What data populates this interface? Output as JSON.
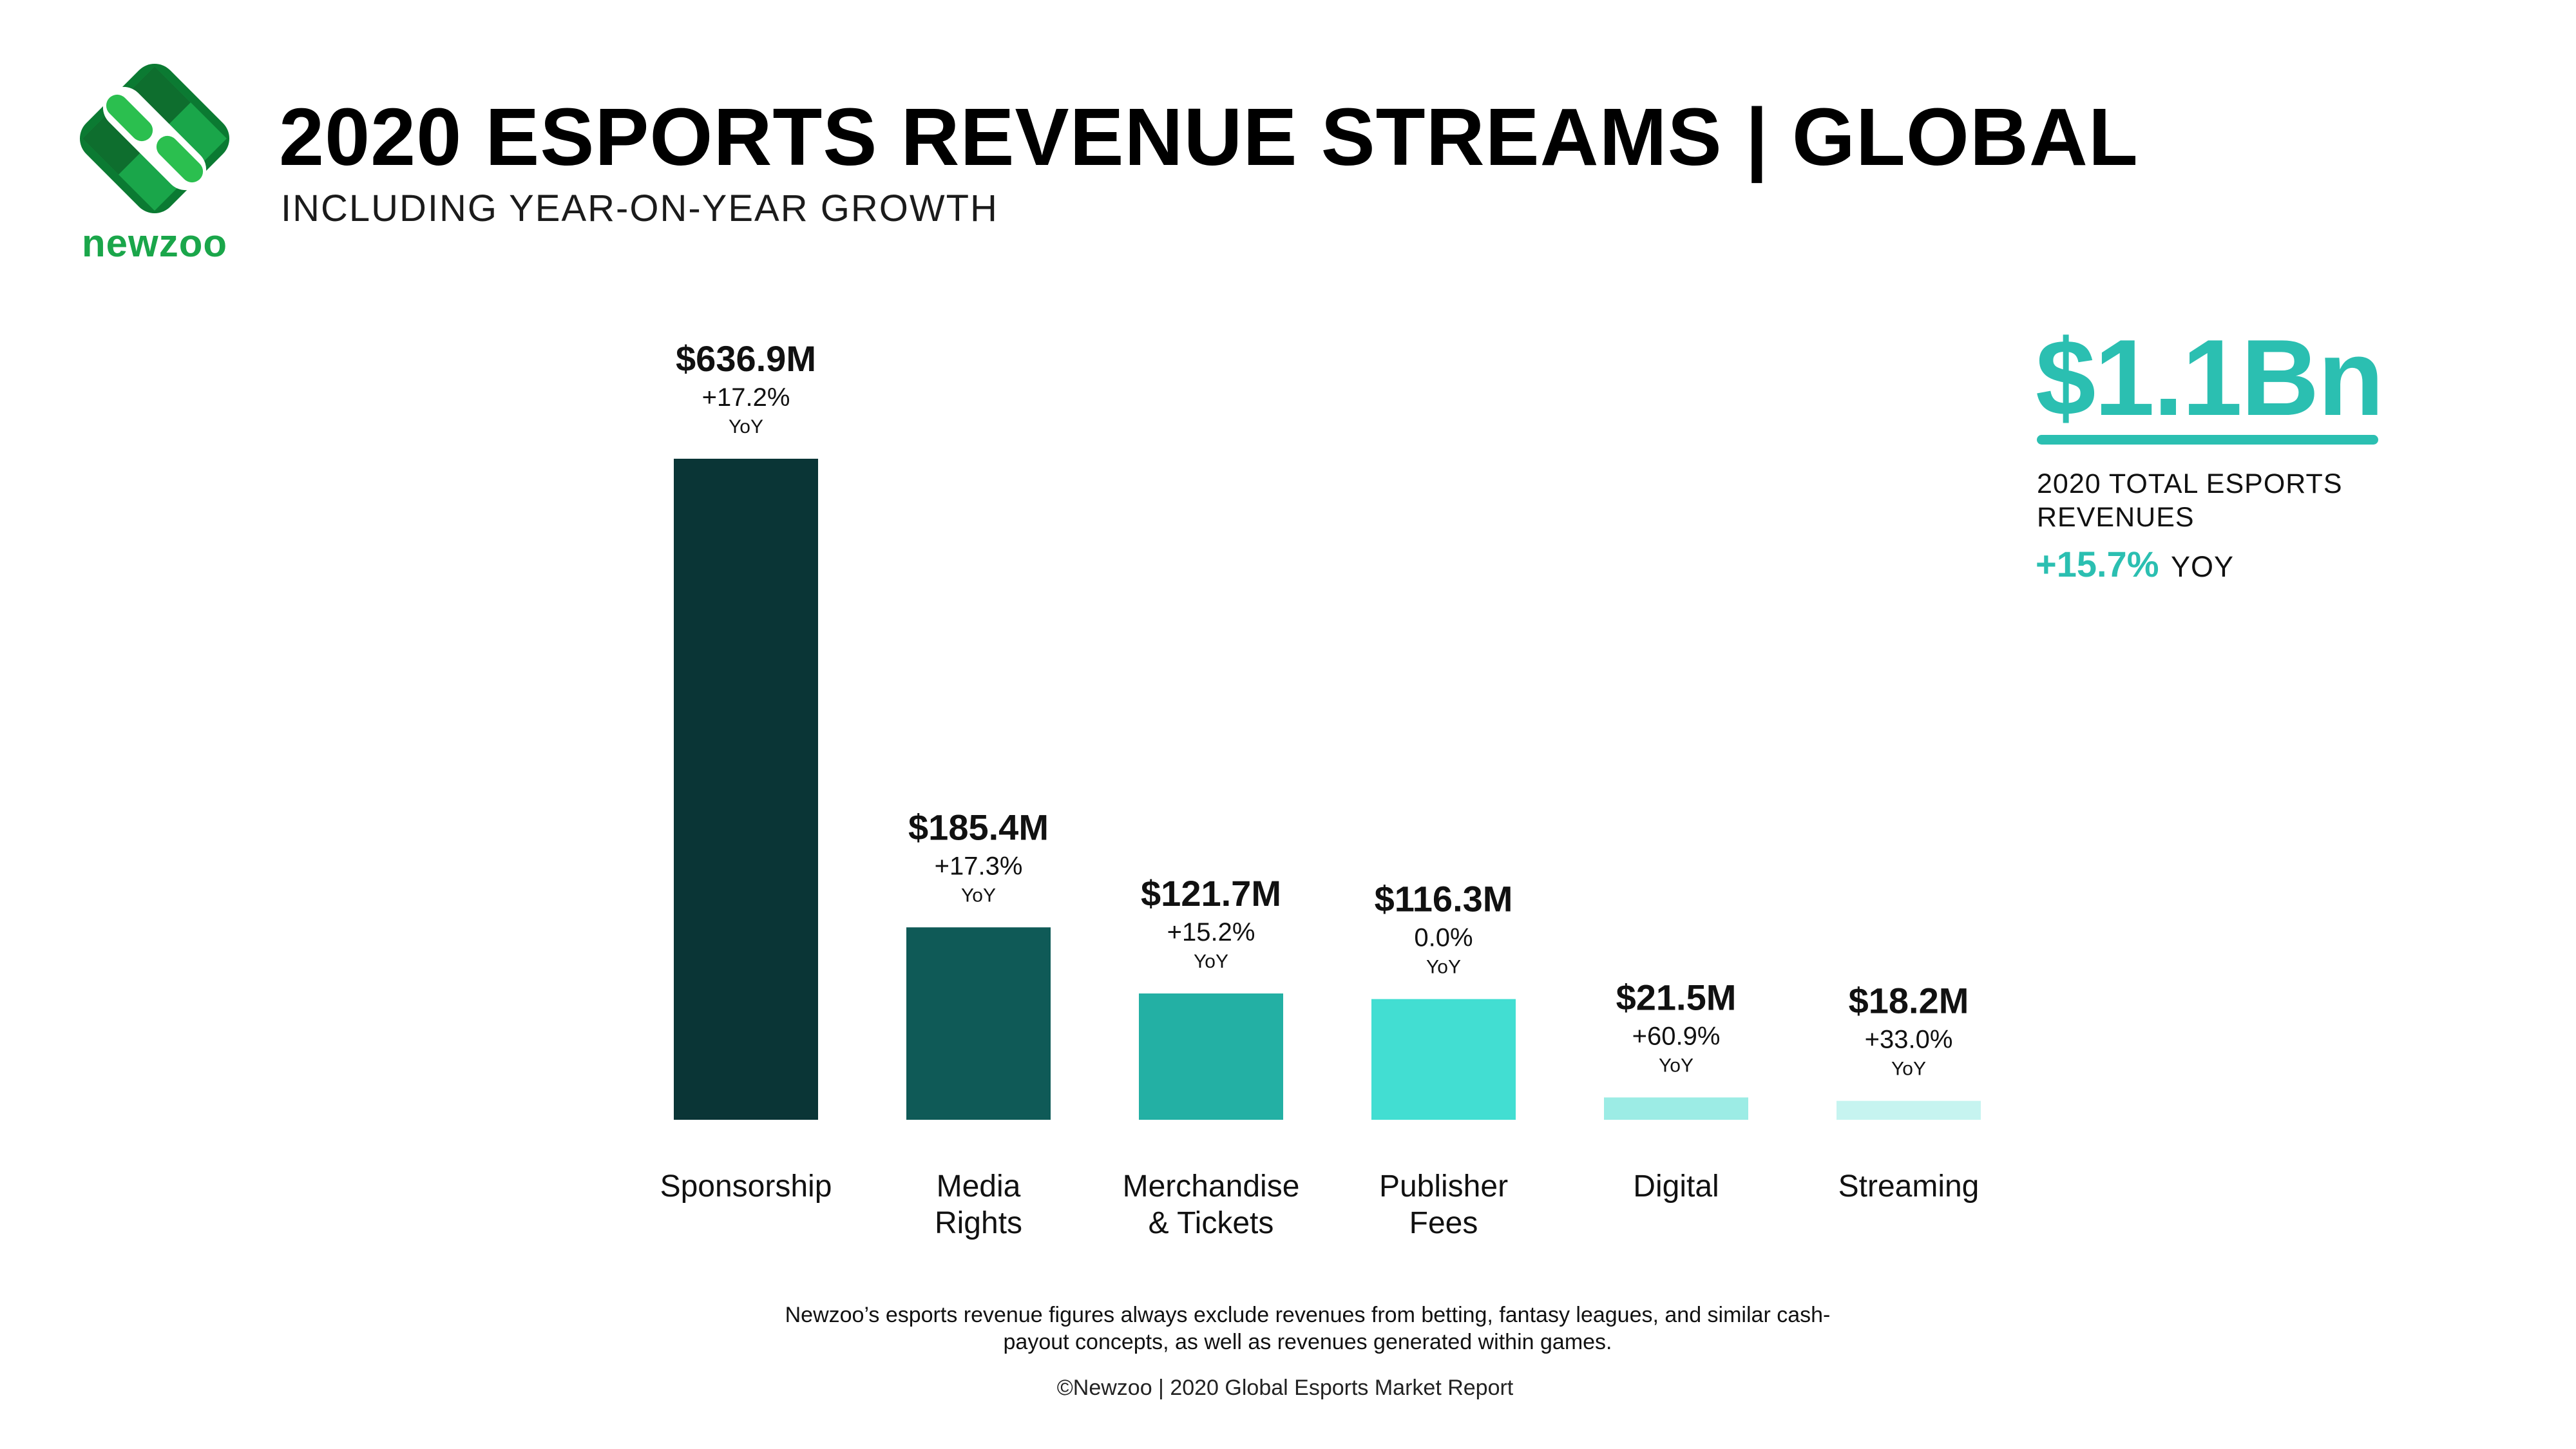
{
  "brand": {
    "name": "newzoo",
    "colors": {
      "dark": "#0b7a32",
      "mid": "#1aa64a",
      "light": "#2bbf4f"
    }
  },
  "header": {
    "title": "2020 ESPORTS REVENUE STREAMS | GLOBAL",
    "subtitle": "INCLUDING YEAR-ON-YEAR GROWTH"
  },
  "chart_data": {
    "type": "bar",
    "title": "2020 ESPORTS REVENUE STREAMS | GLOBAL",
    "subtitle": "INCLUDING YEAR-ON-YEAR GROWTH",
    "xlabel": "",
    "ylabel": "",
    "unit": "$M",
    "grid": false,
    "legend": "none",
    "categories": [
      [
        "Sponsorship"
      ],
      [
        "Media",
        "Rights"
      ],
      [
        "Merchandise",
        "& Tickets"
      ],
      [
        "Publisher",
        "Fees"
      ],
      [
        "Digital"
      ],
      [
        "Streaming"
      ]
    ],
    "values": [
      636.9,
      185.4,
      121.7,
      116.3,
      21.5,
      18.2
    ],
    "value_labels": [
      "$636.9M",
      "$185.4M",
      "$121.7M",
      "$116.3M",
      "$21.5M",
      "$18.2M"
    ],
    "growth_labels": [
      "+17.2%",
      "+17.3%",
      "+15.2%",
      "0.0%",
      "+60.9%",
      "+33.0%"
    ],
    "growth_unit": "YoY",
    "colors": [
      "#0a3536",
      "#0f5a57",
      "#23b0a4",
      "#42ded2",
      "#9cece5",
      "#c6f4f0"
    ],
    "ylim": [
      0,
      636.9
    ]
  },
  "total": {
    "value": "$1.1Bn",
    "label": "2020 TOTAL ESPORTS REVENUES",
    "growth": "+15.7%",
    "growth_unit": "YOY",
    "color": "#2bbfb1"
  },
  "footer": {
    "note": "Newzoo’s esports revenue figures always exclude revenues from betting, fantasy leagues, and similar cash-payout concepts, as well as revenues generated within games.",
    "copyright": "©Newzoo | 2020 Global Esports Market Report"
  }
}
